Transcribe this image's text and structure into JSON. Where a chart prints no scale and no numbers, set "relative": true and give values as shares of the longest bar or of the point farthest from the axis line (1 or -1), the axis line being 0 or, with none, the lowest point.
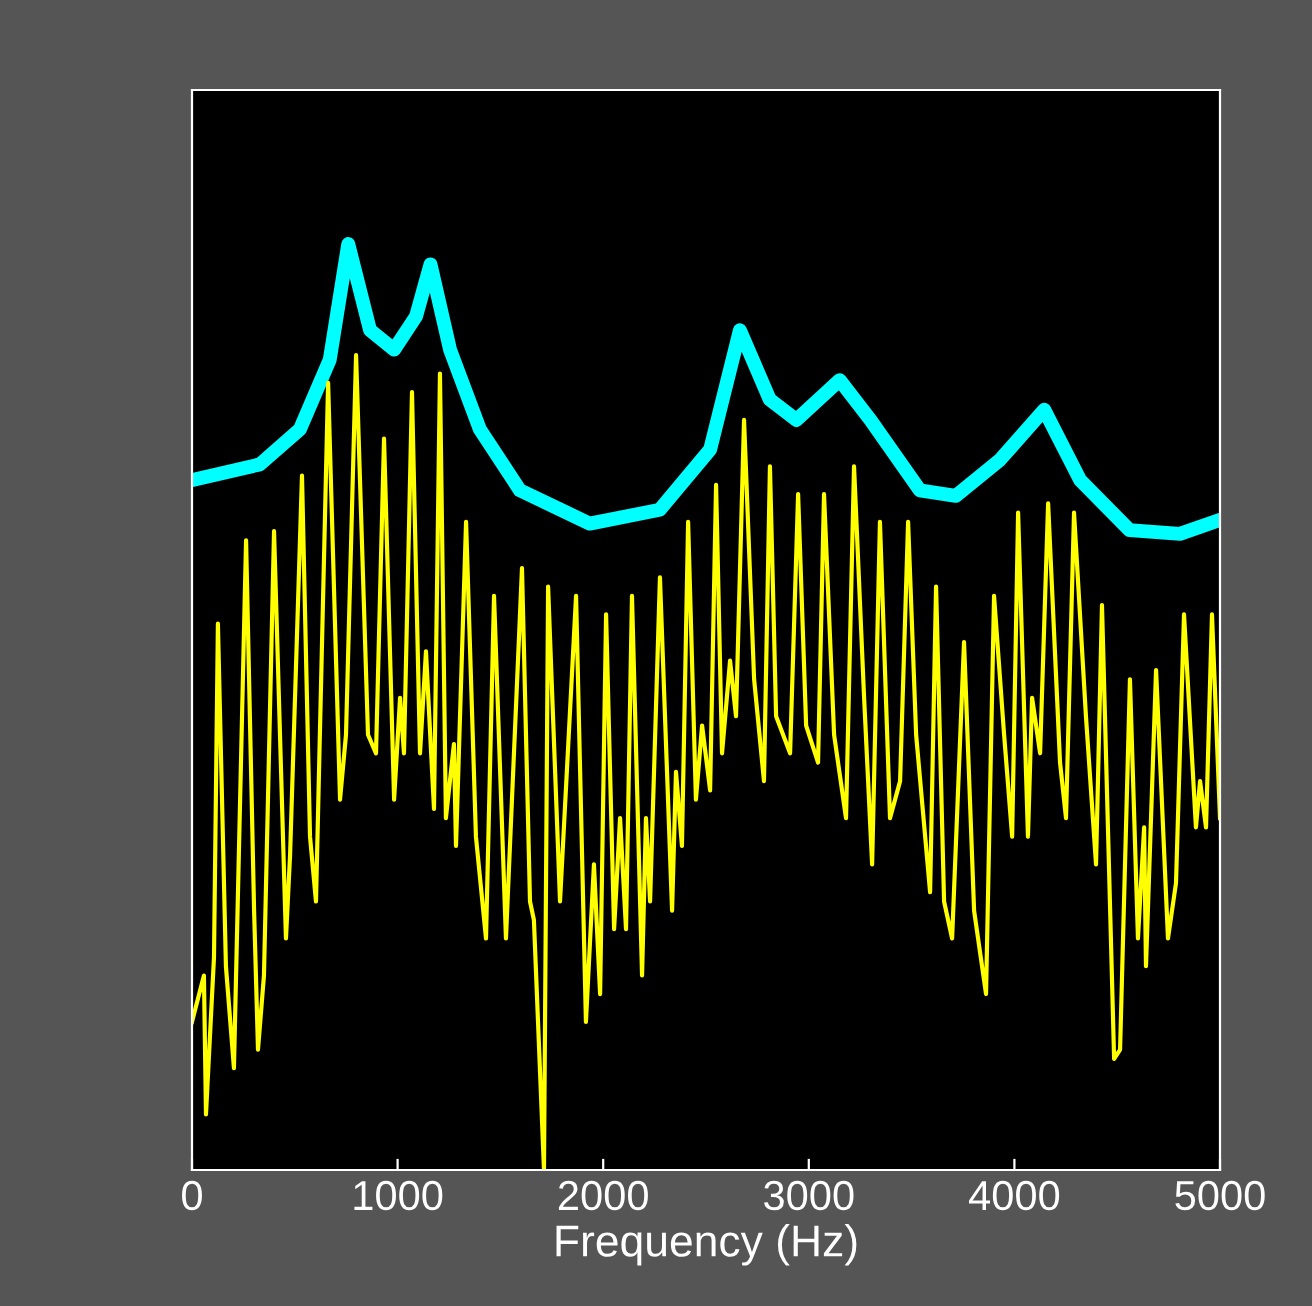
{
  "chart_data": {
    "type": "line",
    "xlabel": "Frequency (Hz)",
    "relative": true,
    "xlim": [
      0,
      5000
    ],
    "xticks": [
      0,
      1000,
      2000,
      3000,
      4000,
      5000
    ],
    "tick_labels": "x",
    "series": [
      {
        "color": "#00ffff",
        "x": [
          0,
          330,
          525,
          670,
          760,
          866,
          983,
          1090,
          1160,
          1255,
          1400,
          1595,
          1935,
          2275,
          2520,
          2665,
          2810,
          2940,
          3150,
          3300,
          3540,
          3715,
          3930,
          4145,
          4320,
          4560,
          4805,
          5000
        ],
        "values": [
          0.745,
          0.762,
          0.8,
          0.875,
          1.0,
          0.907,
          0.886,
          0.922,
          0.978,
          0.886,
          0.8,
          0.734,
          0.698,
          0.713,
          0.778,
          0.907,
          0.832,
          0.81,
          0.853,
          0.81,
          0.734,
          0.728,
          0.767,
          0.821,
          0.745,
          0.691,
          0.687,
          0.702
        ]
      },
      {
        "color": "#ffff00",
        "x": [
          0,
          58,
          68,
          107,
          126,
          165,
          204,
          263,
          302,
          321,
          350,
          399,
          457,
          477,
          535,
          574,
          603,
          662,
          720,
          749,
          798,
          856,
          895,
          934,
          983,
          1012,
          1031,
          1070,
          1109,
          1138,
          1177,
          1206,
          1235,
          1274,
          1284,
          1333,
          1381,
          1430,
          1469,
          1527,
          1605,
          1644,
          1663,
          1712,
          1732,
          1790,
          1868,
          1916,
          1955,
          1985,
          2014,
          2053,
          2082,
          2111,
          2140,
          2189,
          2208,
          2228,
          2276,
          2335,
          2354,
          2383,
          2413,
          2451,
          2481,
          2520,
          2549,
          2578,
          2617,
          2646,
          2685,
          2734,
          2782,
          2811,
          2841,
          2909,
          2948,
          2987,
          3045,
          3074,
          3123,
          3181,
          3220,
          3269,
          3308,
          3346,
          3395,
          3444,
          3483,
          3522,
          3590,
          3619,
          3658,
          3697,
          3755,
          3804,
          3862,
          3901,
          3950,
          3989,
          4018,
          4066,
          4086,
          4125,
          4164,
          4222,
          4251,
          4290,
          4348,
          4397,
          4426,
          4485,
          4514,
          4562,
          4601,
          4631,
          4640,
          4689,
          4747,
          4786,
          4825,
          4883,
          4903,
          4932,
          4961,
          5000
        ],
        "values": [
          0.16,
          0.21,
          0.06,
          0.23,
          0.59,
          0.22,
          0.11,
          0.68,
          0.28,
          0.13,
          0.21,
          0.69,
          0.25,
          0.34,
          0.75,
          0.36,
          0.29,
          0.85,
          0.4,
          0.47,
          0.88,
          0.47,
          0.45,
          0.79,
          0.4,
          0.51,
          0.45,
          0.84,
          0.45,
          0.56,
          0.39,
          0.86,
          0.38,
          0.46,
          0.35,
          0.7,
          0.36,
          0.25,
          0.62,
          0.25,
          0.65,
          0.29,
          0.27,
          0,
          0.63,
          0.29,
          0.62,
          0.16,
          0.33,
          0.19,
          0.6,
          0.26,
          0.38,
          0.26,
          0.62,
          0.21,
          0.38,
          0.29,
          0.64,
          0.28,
          0.43,
          0.35,
          0.7,
          0.4,
          0.48,
          0.41,
          0.74,
          0.45,
          0.55,
          0.49,
          0.81,
          0.53,
          0.42,
          0.76,
          0.49,
          0.45,
          0.73,
          0.48,
          0.44,
          0.73,
          0.47,
          0.38,
          0.76,
          0.51,
          0.33,
          0.7,
          0.38,
          0.42,
          0.7,
          0.47,
          0.3,
          0.63,
          0.29,
          0.25,
          0.57,
          0.28,
          0.19,
          0.62,
          0.47,
          0.36,
          0.71,
          0.36,
          0.51,
          0.45,
          0.72,
          0.44,
          0.38,
          0.71,
          0.49,
          0.33,
          0.61,
          0.12,
          0.13,
          0.53,
          0.25,
          0.37,
          0.22,
          0.54,
          0.25,
          0.31,
          0.6,
          0.37,
          0.42,
          0.37,
          0.6,
          0.38
        ]
      }
    ]
  }
}
